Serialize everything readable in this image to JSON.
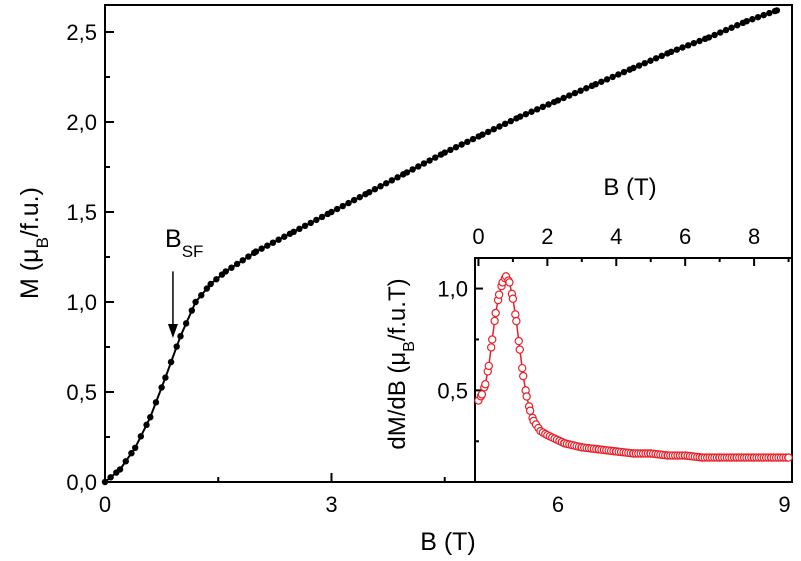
{
  "chart_data": [
    {
      "type": "scatter",
      "panel": "main",
      "xlabel": "B (T)",
      "ylabel_main": "M (μ",
      "ylabel_sub": "B",
      "ylabel_tail": "/f.u.)",
      "xlim": [
        0,
        9.1
      ],
      "ylim": [
        0,
        2.65
      ],
      "xticks": [
        0,
        3,
        6,
        9
      ],
      "xtick_labels": [
        "0",
        "3",
        "6",
        "9"
      ],
      "yticks": [
        0.0,
        0.5,
        1.0,
        1.5,
        2.0,
        2.5
      ],
      "ytick_labels": [
        "0,0",
        "0,5",
        "1,0",
        "1,5",
        "2,0",
        "2,5"
      ],
      "grid": false,
      "series": [
        {
          "marker": "filled-circle",
          "color": "#000000",
          "points": [
            [
              0.0,
              0.0
            ],
            [
              0.2,
              0.07
            ],
            [
              0.4,
              0.19
            ],
            [
              0.6,
              0.36
            ],
            [
              0.8,
              0.58
            ],
            [
              1.0,
              0.81
            ],
            [
              1.2,
              1.0
            ],
            [
              1.4,
              1.1
            ],
            [
              1.6,
              1.17
            ],
            [
              2.0,
              1.28
            ],
            [
              2.5,
              1.39
            ],
            [
              3.0,
              1.5
            ],
            [
              3.5,
              1.61
            ],
            [
              4.0,
              1.72
            ],
            [
              4.5,
              1.83
            ],
            [
              5.0,
              1.93
            ],
            [
              5.5,
              2.03
            ],
            [
              6.0,
              2.12
            ],
            [
              6.5,
              2.21
            ],
            [
              7.0,
              2.3
            ],
            [
              7.5,
              2.39
            ],
            [
              8.0,
              2.47
            ],
            [
              8.5,
              2.56
            ],
            [
              8.9,
              2.62
            ]
          ]
        }
      ],
      "annotations": [
        {
          "text_main": "B",
          "text_sub": "SF",
          "arrow_x": 0.9,
          "arrow_from_y": 1.17,
          "arrow_to_y": 0.8
        }
      ]
    },
    {
      "type": "scatter",
      "panel": "inset",
      "xlabel": "B (T)",
      "xlabel_position": "top",
      "ylabel_main": "dM/dB (μ",
      "ylabel_sub": "B",
      "ylabel_tail": "/f.u.T)",
      "xlim": [
        -0.1,
        9.1
      ],
      "ylim": [
        0.05,
        1.15
      ],
      "xticks": [
        0,
        2,
        4,
        6,
        8
      ],
      "xtick_labels": [
        "0",
        "2",
        "4",
        "6",
        "8"
      ],
      "yticks": [
        0.5,
        1.0
      ],
      "ytick_labels": [
        "0,5",
        "1,0"
      ],
      "grid": false,
      "series": [
        {
          "marker": "open-circle",
          "color": "#e8202a",
          "with_line": true,
          "points": [
            [
              0.0,
              0.45
            ],
            [
              0.1,
              0.48
            ],
            [
              0.2,
              0.53
            ],
            [
              0.3,
              0.62
            ],
            [
              0.4,
              0.75
            ],
            [
              0.5,
              0.88
            ],
            [
              0.6,
              0.97
            ],
            [
              0.7,
              1.03
            ],
            [
              0.8,
              1.06
            ],
            [
              0.9,
              1.03
            ],
            [
              1.0,
              0.95
            ],
            [
              1.1,
              0.84
            ],
            [
              1.2,
              0.7
            ],
            [
              1.3,
              0.57
            ],
            [
              1.4,
              0.47
            ],
            [
              1.5,
              0.4
            ],
            [
              1.6,
              0.35
            ],
            [
              1.8,
              0.3
            ],
            [
              2.0,
              0.28
            ],
            [
              2.5,
              0.24
            ],
            [
              3.0,
              0.22
            ],
            [
              3.5,
              0.21
            ],
            [
              4.0,
              0.2
            ],
            [
              4.5,
              0.19
            ],
            [
              5.0,
              0.19
            ],
            [
              5.5,
              0.18
            ],
            [
              6.0,
              0.18
            ],
            [
              6.5,
              0.17
            ],
            [
              7.0,
              0.17
            ],
            [
              7.5,
              0.17
            ],
            [
              8.0,
              0.17
            ],
            [
              8.5,
              0.17
            ],
            [
              9.0,
              0.17
            ]
          ]
        }
      ]
    }
  ]
}
